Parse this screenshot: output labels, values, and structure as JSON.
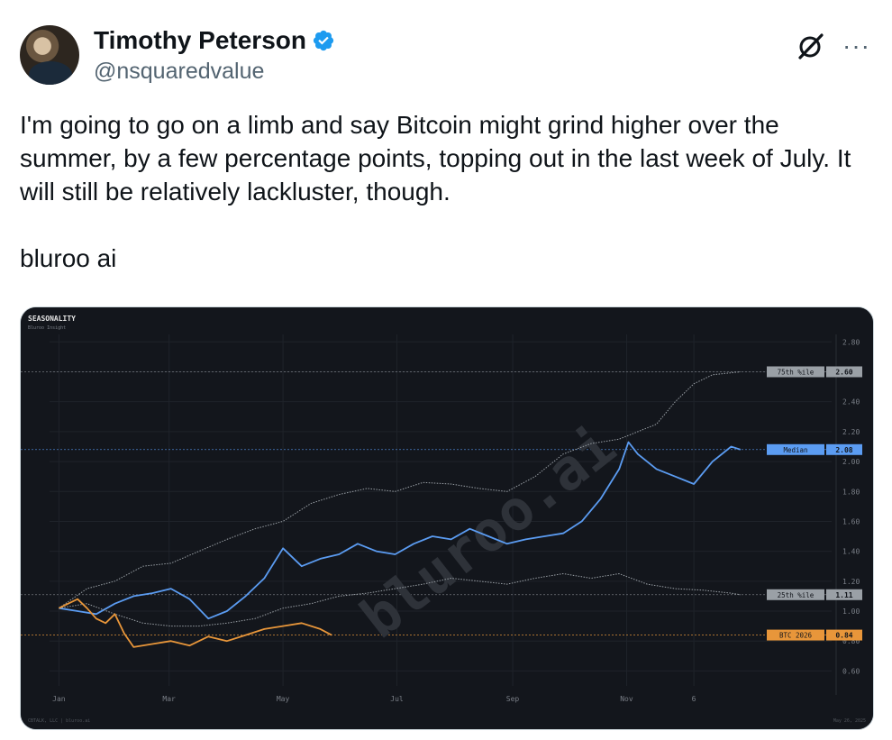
{
  "tweet": {
    "display_name": "Timothy Peterson",
    "handle": "@nsquaredvalue",
    "text": "I'm going to go on a limb and say Bitcoin might grind higher over the summer, by a few percentage points, topping out in the last week of July. It will still be relatively lackluster, though.\n\nbluroo ai",
    "avatar_icon": "profile-photo",
    "verified_icon": "verified-badge-icon",
    "menu_icons": [
      "grok-icon",
      "more-icon"
    ],
    "more_glyph": "···"
  },
  "chart_data": {
    "type": "line",
    "title": "SEASONALITY",
    "subtitle": "Bluroo Insight",
    "watermark": "bluroo.ai",
    "footer_left": "CBTALK, LLC | bluroo.ai",
    "footer_right": "May 26, 2025",
    "ylim": [
      0.5,
      2.85
    ],
    "y_ticks": [
      "2.80",
      "2.60",
      "2.40",
      "2.20",
      "2.00",
      "1.80",
      "1.60",
      "1.40",
      "1.20",
      "1.00",
      "0.80",
      "0.60"
    ],
    "y_tick_values": [
      2.8,
      2.6,
      2.4,
      2.2,
      2.0,
      1.8,
      1.6,
      1.4,
      1.2,
      1.0,
      0.8,
      0.6
    ],
    "x_ticks": [
      "Jan",
      "Mar",
      "May",
      "Jul",
      "Sep",
      "Nov",
      "6"
    ],
    "x_tick_days": [
      0,
      59,
      120,
      181,
      243,
      304,
      340
    ],
    "xlim": [
      -5,
      380
    ],
    "series": [
      {
        "name": "75th %ile",
        "color": "#9aa0a6",
        "style": "dotted",
        "last": 2.6,
        "x": [
          0,
          15,
          30,
          45,
          60,
          75,
          90,
          105,
          120,
          135,
          150,
          165,
          180,
          195,
          210,
          225,
          240,
          255,
          270,
          285,
          300,
          310,
          320,
          330,
          340,
          350,
          365
        ],
        "y": [
          1.02,
          1.15,
          1.2,
          1.3,
          1.32,
          1.4,
          1.48,
          1.55,
          1.6,
          1.72,
          1.78,
          1.82,
          1.8,
          1.86,
          1.85,
          1.82,
          1.8,
          1.9,
          2.05,
          2.12,
          2.15,
          2.2,
          2.25,
          2.4,
          2.52,
          2.58,
          2.6
        ]
      },
      {
        "name": "Median",
        "color": "#5b9cf2",
        "style": "solid",
        "last": 2.08,
        "x": [
          0,
          10,
          20,
          30,
          40,
          50,
          60,
          70,
          80,
          90,
          100,
          110,
          120,
          130,
          140,
          150,
          160,
          170,
          180,
          190,
          200,
          210,
          220,
          230,
          240,
          250,
          260,
          270,
          280,
          290,
          300,
          305,
          310,
          320,
          330,
          340,
          350,
          360,
          365
        ],
        "y": [
          1.02,
          1.0,
          0.98,
          1.05,
          1.1,
          1.12,
          1.15,
          1.08,
          0.95,
          1.0,
          1.1,
          1.22,
          1.42,
          1.3,
          1.35,
          1.38,
          1.45,
          1.4,
          1.38,
          1.45,
          1.5,
          1.48,
          1.55,
          1.5,
          1.45,
          1.48,
          1.5,
          1.52,
          1.6,
          1.75,
          1.95,
          2.13,
          2.05,
          1.95,
          1.9,
          1.85,
          2.0,
          2.1,
          2.08
        ]
      },
      {
        "name": "25th %ile",
        "color": "#9aa0a6",
        "style": "dotted",
        "last": 1.11,
        "x": [
          0,
          15,
          30,
          45,
          60,
          75,
          90,
          105,
          120,
          135,
          150,
          165,
          180,
          195,
          210,
          225,
          240,
          255,
          270,
          285,
          300,
          315,
          330,
          345,
          360,
          365
        ],
        "y": [
          1.02,
          1.05,
          0.98,
          0.92,
          0.9,
          0.9,
          0.92,
          0.95,
          1.02,
          1.05,
          1.1,
          1.12,
          1.15,
          1.18,
          1.22,
          1.2,
          1.18,
          1.22,
          1.25,
          1.22,
          1.25,
          1.18,
          1.15,
          1.14,
          1.12,
          1.11
        ]
      },
      {
        "name": "BTC 2026",
        "color": "#e8963a",
        "style": "solid",
        "last": 0.84,
        "x": [
          0,
          5,
          10,
          15,
          20,
          25,
          30,
          35,
          40,
          50,
          60,
          70,
          80,
          90,
          100,
          110,
          120,
          130,
          140,
          146
        ],
        "y": [
          1.02,
          1.05,
          1.08,
          1.02,
          0.95,
          0.92,
          0.98,
          0.85,
          0.76,
          0.78,
          0.8,
          0.77,
          0.83,
          0.8,
          0.84,
          0.88,
          0.9,
          0.92,
          0.88,
          0.84
        ]
      }
    ],
    "legend_labels": [
      {
        "label": "75th %ile",
        "value": "2.60"
      },
      {
        "label": "Median",
        "value": "2.08"
      },
      {
        "label": "25th %ile",
        "value": "1.11"
      },
      {
        "label": "BTC 2026",
        "value": "0.84"
      }
    ]
  }
}
